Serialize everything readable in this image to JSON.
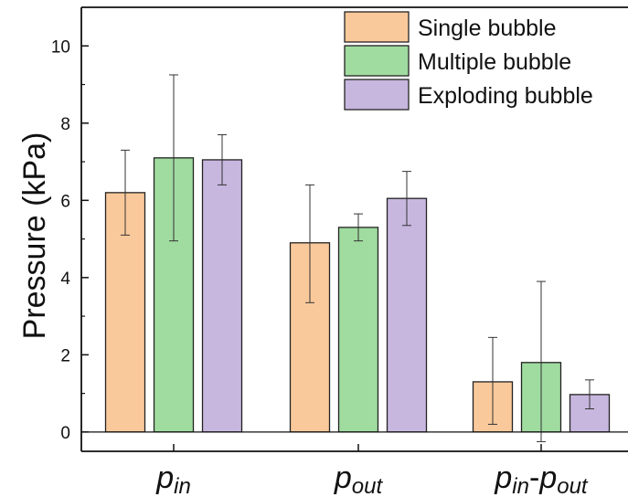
{
  "chart_data": {
    "type": "bar",
    "title": "",
    "xlabel": "",
    "ylabel": "Pressure (kPa)",
    "ylim": [
      -0.5,
      11
    ],
    "yticks": [
      0,
      2,
      4,
      6,
      8,
      10
    ],
    "categories": [
      {
        "label": "p",
        "sub": "in"
      },
      {
        "label": "p",
        "sub": "out"
      },
      {
        "label": "p",
        "sub": "in",
        "sep": "-",
        "label2": "p",
        "sub2": "out"
      }
    ],
    "series": [
      {
        "name": "Single bubble",
        "color": "#fac99b",
        "values": [
          6.2,
          4.9,
          1.3
        ],
        "err_low": [
          5.1,
          3.35,
          0.2
        ],
        "err_high": [
          7.3,
          6.4,
          2.45
        ]
      },
      {
        "name": "Multiple bubble",
        "color": "#a0dba0",
        "values": [
          7.1,
          5.3,
          1.8
        ],
        "err_low": [
          4.95,
          4.95,
          -0.25
        ],
        "err_high": [
          9.25,
          5.65,
          3.9
        ]
      },
      {
        "name": "Exploding bubble",
        "color": "#c7b7df",
        "values": [
          7.05,
          6.05,
          0.97
        ],
        "err_low": [
          6.4,
          5.35,
          0.6
        ],
        "err_high": [
          7.7,
          6.75,
          1.35
        ]
      }
    ],
    "grid": false,
    "legend": "top-right",
    "zero_line": true
  }
}
